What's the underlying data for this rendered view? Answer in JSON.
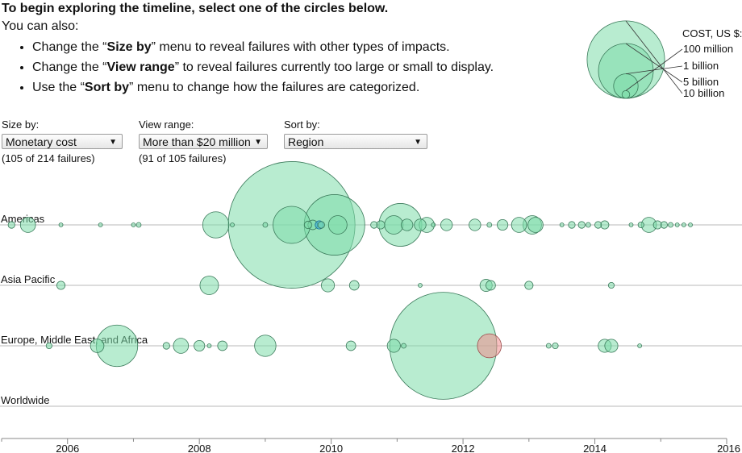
{
  "intro": {
    "title": "To begin exploring the timeline, select one of the circles below.",
    "subtitle": "You can also:",
    "bullets": [
      {
        "pre": "Change the “",
        "bold": "Size by",
        "post": "” menu to reveal failures with other types of impacts."
      },
      {
        "pre": "Change the “",
        "bold": "View range",
        "post": "” to reveal failures currently too large or small to display."
      },
      {
        "pre": "Use the “",
        "bold": "Sort by",
        "post": "” menu to change how the failures are categorized."
      }
    ]
  },
  "controls": {
    "size_by": {
      "label": "Size by:",
      "value": "Monetary cost",
      "count": "(105 of 214 failures)"
    },
    "view_range": {
      "label": "View range:",
      "value": "More than $20 million",
      "count": "(91 of 105 failures)"
    },
    "sort_by": {
      "label": "Sort by:",
      "value": "Region"
    }
  },
  "legend": {
    "title": "COST, US $:",
    "entries": [
      "100 million",
      "1 billion",
      "5 billion",
      "10 billion"
    ],
    "values_billion": [
      0.1,
      1,
      5,
      10
    ]
  },
  "colors": {
    "normal": "#7ddcaa",
    "stroke": "#3a7a5a",
    "selected": "#33aadd",
    "highlight": "#f08c8c",
    "axis": "#888888"
  },
  "chart_data": {
    "type": "scatter",
    "title": "",
    "xlabel": "",
    "ylabel": "",
    "xlim": [
      2005,
      2016
    ],
    "x_ticks": [
      "2006",
      "2008",
      "2010",
      "2012",
      "2014",
      "2016"
    ],
    "categories": [
      "Americas",
      "Asia Pacific",
      "Europe, Middle East, and Africa",
      "Worldwide"
    ],
    "size_unit": "billion US $",
    "series": [
      {
        "name": "Americas",
        "points": [
          [
            2005.15,
            0.04
          ],
          [
            2005.4,
            0.2
          ],
          [
            2005.9,
            0.01
          ],
          [
            2006.5,
            0.01
          ],
          [
            2007.0,
            0.01
          ],
          [
            2007.08,
            0.02
          ],
          [
            2008.25,
            0.6
          ],
          [
            2008.5,
            0.01
          ],
          [
            2009.0,
            0.02
          ],
          [
            2009.4,
            14
          ],
          [
            2009.4,
            1.2
          ],
          [
            2009.65,
            0.05
          ],
          [
            2009.72,
            0.08
          ],
          [
            2009.82,
            0.06
          ],
          [
            2009.85,
            0.04
          ],
          [
            2010.05,
            3.2
          ],
          [
            2010.1,
            0.3
          ],
          [
            2010.65,
            0.04
          ],
          [
            2010.75,
            0.06
          ],
          [
            2010.95,
            0.3
          ],
          [
            2011.05,
            1.6
          ],
          [
            2011.15,
            0.12
          ],
          [
            2011.35,
            0.12
          ],
          [
            2011.45,
            0.2
          ],
          [
            2011.55,
            0.01
          ],
          [
            2011.75,
            0.12
          ],
          [
            2012.18,
            0.12
          ],
          [
            2012.4,
            0.02
          ],
          [
            2012.6,
            0.1
          ],
          [
            2012.85,
            0.2
          ],
          [
            2013.05,
            0.3
          ],
          [
            2013.1,
            0.2
          ],
          [
            2013.5,
            0.01
          ],
          [
            2013.65,
            0.04
          ],
          [
            2013.8,
            0.04
          ],
          [
            2013.9,
            0.02
          ],
          [
            2014.05,
            0.04
          ],
          [
            2014.15,
            0.06
          ],
          [
            2014.55,
            0.01
          ],
          [
            2014.7,
            0.03
          ],
          [
            2014.82,
            0.2
          ],
          [
            2014.95,
            0.06
          ],
          [
            2015.05,
            0.04
          ],
          [
            2015.15,
            0.02
          ],
          [
            2015.25,
            0.01
          ],
          [
            2015.35,
            0.01
          ],
          [
            2015.45,
            0.01
          ]
        ]
      },
      {
        "name": "Asia Pacific",
        "points": [
          [
            2005.9,
            0.06
          ],
          [
            2008.15,
            0.3
          ],
          [
            2009.95,
            0.15
          ],
          [
            2010.35,
            0.08
          ],
          [
            2011.35,
            0.01
          ],
          [
            2012.35,
            0.13
          ],
          [
            2012.42,
            0.08
          ],
          [
            2013.0,
            0.06
          ],
          [
            2014.25,
            0.03
          ]
        ]
      },
      {
        "name": "Europe, Middle East, and Africa",
        "points": [
          [
            2005.72,
            0.03
          ],
          [
            2006.45,
            0.16
          ],
          [
            2006.75,
            1.5
          ],
          [
            2007.5,
            0.04
          ],
          [
            2007.72,
            0.2
          ],
          [
            2008.0,
            0.1
          ],
          [
            2008.15,
            0.01
          ],
          [
            2008.35,
            0.08
          ],
          [
            2009.0,
            0.4
          ],
          [
            2010.3,
            0.08
          ],
          [
            2010.95,
            0.15
          ],
          [
            2011.1,
            0.02
          ],
          [
            2011.7,
            10
          ],
          [
            2012.4,
            0.5
          ],
          [
            2013.3,
            0.02
          ],
          [
            2013.4,
            0.03
          ],
          [
            2014.15,
            0.15
          ],
          [
            2014.25,
            0.15
          ],
          [
            2014.68,
            0.01
          ]
        ]
      },
      {
        "name": "Worldwide",
        "points": []
      }
    ],
    "selected": [
      2009.82,
      0.06
    ],
    "highlighted": [
      2012.4,
      0.5
    ]
  }
}
